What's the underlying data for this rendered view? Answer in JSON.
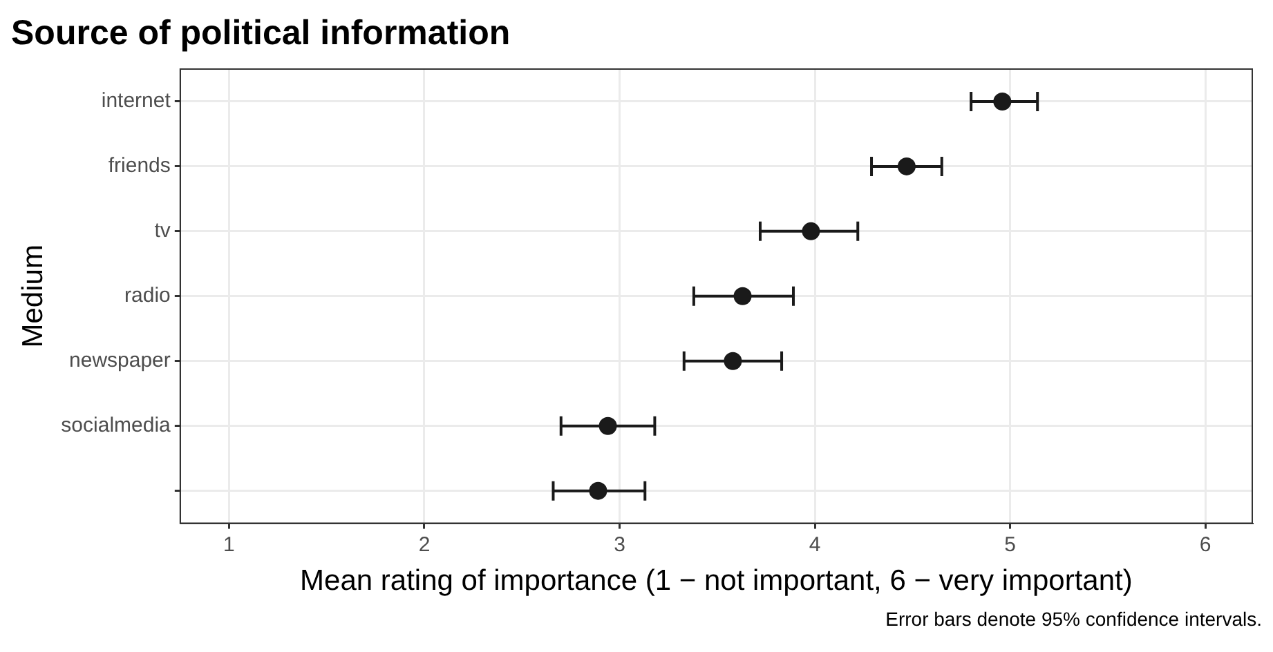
{
  "chart_data": {
    "type": "scatter",
    "title": "Source of political information",
    "xlabel": "Mean rating of importance (1 − not important, 6 − very important)",
    "ylabel": "Medium",
    "orientation": "horizontal",
    "categories": [
      "internet",
      "friends",
      "tv",
      "radio",
      "newspaper",
      "socialmedia",
      null
    ],
    "values": [
      4.96,
      4.47,
      3.98,
      3.63,
      3.58,
      2.94,
      2.89
    ],
    "errors": [
      [
        4.8,
        5.14
      ],
      [
        4.29,
        4.65
      ],
      [
        3.72,
        4.22
      ],
      [
        3.38,
        3.89
      ],
      [
        3.33,
        3.83
      ],
      [
        2.7,
        3.18
      ],
      [
        2.66,
        3.13
      ]
    ],
    "color": "#1a1a1a",
    "marker": "circle",
    "xlim": [
      0.75,
      6.24
    ],
    "xticks": [
      1,
      2,
      3,
      4,
      5,
      6
    ],
    "grid": true,
    "annotations": [
      "Error bars denote 95% confidence intervals."
    ]
  }
}
